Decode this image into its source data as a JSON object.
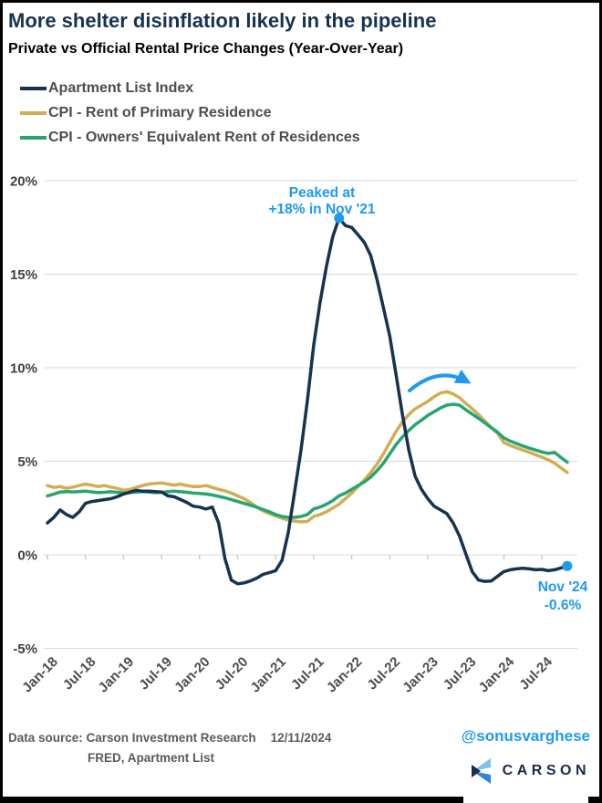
{
  "header": {
    "title": "More shelter disinflation likely in the pipeline",
    "subtitle": "Private vs Official Rental Price Changes (Year-Over-Year)"
  },
  "legend": {
    "items": [
      {
        "label": "Apartment List Index"
      },
      {
        "label": "CPI - Rent of Primary Residence"
      },
      {
        "label": "CPI - Owners' Equivalent Rent of Residences"
      }
    ]
  },
  "chart_data": {
    "type": "line",
    "x_start": "Jan-18",
    "x_end": "Nov-24",
    "x_frequency": "monthly",
    "x_tick_labels": [
      "Jan-18",
      "Jul-18",
      "Jan-19",
      "Jul-19",
      "Jan-20",
      "Jul-20",
      "Jan-21",
      "Jul-21",
      "Jan-22",
      "Jul-22",
      "Jan-23",
      "Jul-23",
      "Jan-24",
      "Jul-24"
    ],
    "y_ticks": [
      {
        "value": 20,
        "label": "20%"
      },
      {
        "value": 15,
        "label": "15%"
      },
      {
        "value": 10,
        "label": "10%"
      },
      {
        "value": 5,
        "label": "5%"
      },
      {
        "value": 0,
        "label": "0%"
      },
      {
        "value": -5,
        "label": "-5%"
      }
    ],
    "ylim": [
      -5,
      20
    ],
    "grid": "horizontal",
    "legend_position": "top-left",
    "annotation_color": "#1e9af0",
    "series": [
      {
        "name": "Apartment List Index",
        "color": "#17334f",
        "values": [
          1.7,
          2.0,
          2.4,
          2.15,
          2.0,
          2.3,
          2.75,
          2.85,
          2.9,
          2.95,
          3.0,
          3.1,
          3.25,
          3.35,
          3.45,
          3.4,
          3.4,
          3.38,
          3.35,
          3.15,
          3.1,
          2.95,
          2.8,
          2.6,
          2.55,
          2.45,
          2.55,
          1.7,
          -0.2,
          -1.35,
          -1.55,
          -1.5,
          -1.4,
          -1.25,
          -1.05,
          -0.95,
          -0.85,
          -0.3,
          1.2,
          3.4,
          5.6,
          8.2,
          11.2,
          13.5,
          15.4,
          17.0,
          18.0,
          17.6,
          17.5,
          17.1,
          16.7,
          16.0,
          14.7,
          13.2,
          11.7,
          9.6,
          7.5,
          5.6,
          4.2,
          3.5,
          3.0,
          2.6,
          2.4,
          2.2,
          1.7,
          1.0,
          0.05,
          -0.9,
          -1.35,
          -1.42,
          -1.4,
          -1.15,
          -0.9,
          -0.8,
          -0.75,
          -0.72,
          -0.75,
          -0.8,
          -0.78,
          -0.85,
          -0.8,
          -0.7,
          -0.6
        ]
      },
      {
        "name": "CPI - Rent of Primary Residence",
        "color": "#d1ae55",
        "values": [
          3.7,
          3.6,
          3.65,
          3.55,
          3.62,
          3.7,
          3.78,
          3.72,
          3.65,
          3.7,
          3.62,
          3.55,
          3.45,
          3.5,
          3.6,
          3.7,
          3.78,
          3.82,
          3.84,
          3.78,
          3.72,
          3.78,
          3.7,
          3.65,
          3.65,
          3.7,
          3.6,
          3.5,
          3.42,
          3.3,
          3.15,
          3.0,
          2.8,
          2.55,
          2.35,
          2.2,
          2.08,
          1.95,
          1.86,
          1.8,
          1.76,
          1.78,
          2.05,
          2.15,
          2.3,
          2.5,
          2.7,
          3.0,
          3.3,
          3.65,
          4.0,
          4.4,
          4.85,
          5.4,
          6.0,
          6.6,
          7.1,
          7.5,
          7.8,
          8.0,
          8.2,
          8.45,
          8.65,
          8.72,
          8.6,
          8.4,
          8.1,
          7.8,
          7.5,
          7.15,
          6.8,
          6.5,
          6.0,
          5.85,
          5.72,
          5.6,
          5.48,
          5.35,
          5.22,
          5.08,
          4.9,
          4.65,
          4.4
        ]
      },
      {
        "name": "CPI - Owners' Equivalent Rent of Residences",
        "color": "#27a56f",
        "values": [
          3.15,
          3.25,
          3.35,
          3.38,
          3.36,
          3.38,
          3.4,
          3.36,
          3.32,
          3.34,
          3.37,
          3.34,
          3.3,
          3.32,
          3.35,
          3.38,
          3.35,
          3.32,
          3.34,
          3.37,
          3.4,
          3.37,
          3.34,
          3.3,
          3.28,
          3.25,
          3.2,
          3.12,
          3.05,
          2.95,
          2.85,
          2.75,
          2.65,
          2.55,
          2.42,
          2.3,
          2.15,
          2.05,
          2.0,
          2.0,
          2.05,
          2.15,
          2.45,
          2.55,
          2.7,
          2.9,
          3.15,
          3.3,
          3.5,
          3.7,
          3.9,
          4.15,
          4.5,
          4.9,
          5.4,
          5.9,
          6.3,
          6.65,
          6.95,
          7.2,
          7.45,
          7.65,
          7.85,
          8.0,
          8.05,
          8.0,
          7.75,
          7.52,
          7.3,
          7.05,
          6.8,
          6.55,
          6.25,
          6.08,
          5.95,
          5.82,
          5.7,
          5.6,
          5.5,
          5.42,
          5.48,
          5.2,
          4.95
        ]
      }
    ],
    "annotations": {
      "peak": {
        "line1": "Peaked at",
        "line2": "+18% in Nov '21",
        "series": "Apartment List Index",
        "month": "Nov-21",
        "month_index": 46,
        "value": 18
      },
      "latest": {
        "line1": "Nov '24",
        "line2": "-0.6%",
        "series": "Apartment List Index",
        "month": "Nov-24",
        "month_index": 82,
        "value": -0.6
      },
      "arc_arrow": {
        "description": "curved arrow over the CPI series peak, pointing right"
      }
    }
  },
  "footer": {
    "source_label": "Data source: Carson Investment Research",
    "date": "12/11/2024",
    "source_line2": "FRED, Apartment List",
    "handle": "@sonusvarghese",
    "brand_wordmark": "CARSON"
  }
}
